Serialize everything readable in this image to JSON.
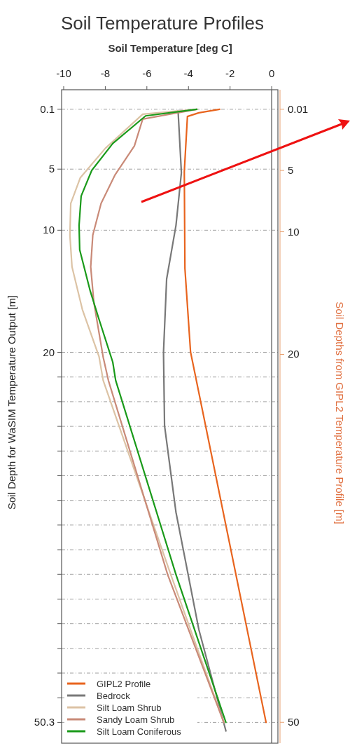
{
  "chart_data": {
    "type": "line",
    "title": "Soil Temperature Profiles",
    "xlabel": "Soil Temperature [deg C]",
    "ylabel": "Soil Depth for WaSIM Temperature Output [m]",
    "y2label": "Soil Depths from GIPL2 Temperature Profile [m]",
    "xlim": [
      -10.1,
      0.3
    ],
    "xticks": [
      -10,
      -8,
      -6,
      -4,
      -2,
      0
    ],
    "ylim": [
      52,
      -1.5
    ],
    "yticks": [
      0.1,
      5,
      10,
      20,
      {
        "value": 22.02,
        "label": null
      },
      {
        "value": 24.04,
        "label": null
      },
      {
        "value": 26.06,
        "label": null
      },
      {
        "value": 28.08,
        "label": null
      },
      {
        "value": 30.1,
        "label": null
      },
      {
        "value": 32.12,
        "label": null
      },
      {
        "value": 34.14,
        "label": null
      },
      {
        "value": 36.16,
        "label": null
      },
      {
        "value": 38.18,
        "label": null
      },
      {
        "value": 40.2,
        "label": null
      },
      {
        "value": 42.22,
        "label": null
      },
      {
        "value": 44.24,
        "label": null
      },
      {
        "value": 46.26,
        "label": null
      },
      {
        "value": 48.28,
        "label": null
      },
      50.3
    ],
    "y2lim": [
      51.7,
      -1.58
    ],
    "y2ticks": [
      0.01,
      5,
      10,
      20,
      50
    ],
    "grid": "y",
    "legend": "bottom left",
    "line_style": "solid",
    "marker": "none",
    "ref_lines": [
      {
        "axis": "x",
        "value": 0,
        "color": "#707070"
      }
    ],
    "series": [
      {
        "name": "GIPL2 Profile",
        "color": "#e8641e",
        "axis": "y2",
        "x": [
          -2.5,
          -3.5,
          -4.05,
          -4.2,
          -4.17,
          -3.9,
          -0.27
        ],
        "values": [
          0.01,
          0.3,
          0.6,
          5.1,
          13,
          19.8,
          50
        ]
      },
      {
        "name": "Bedrock",
        "color": "#787878",
        "x": [
          -4.5,
          -4.34,
          -4.6,
          -5.05,
          -5.2,
          -5.15,
          -4.6,
          -3.5,
          -2.2
        ],
        "values": [
          0.2,
          5.3,
          9.6,
          14,
          20,
          26,
          33.1,
          42.7,
          51
        ]
      },
      {
        "name": "Silt Loam Shrub",
        "color": "#dcc3a5",
        "x": [
          -3.6,
          -6.2,
          -8,
          -9.2,
          -9.66,
          -9.7,
          -9.6,
          -9.1,
          -8.3,
          -8.1,
          -4.85,
          -2.3
        ],
        "values": [
          0.1,
          0.5,
          3.3,
          5.7,
          7.8,
          10.4,
          13,
          16.5,
          20.35,
          22.3,
          38.2,
          50.3
        ]
      },
      {
        "name": "Sandy Loam Shrub",
        "color": "#c98a78",
        "x": [
          -3.6,
          -6.2,
          -6.6,
          -7.54,
          -8.2,
          -8.6,
          -8.7,
          -8.55,
          -8.1,
          -7.85,
          -5,
          -2.3
        ],
        "values": [
          0.1,
          0.9,
          3.1,
          5.5,
          7.8,
          10.4,
          13,
          15.9,
          20.4,
          22.3,
          38.2,
          50.3
        ]
      },
      {
        "name": "Silt Loam Coniferous",
        "color": "#1a9a1a",
        "x": [
          -3.6,
          -6.06,
          -7.64,
          -8.65,
          -9.16,
          -9.26,
          -9.23,
          -8.72,
          -8.3,
          -7.64,
          -7.5,
          -4.6,
          -2.2
        ],
        "values": [
          0.1,
          0.64,
          2.9,
          5.1,
          7.2,
          9.6,
          11.6,
          15,
          17.3,
          20.8,
          22.3,
          38.2,
          50.3
        ]
      }
    ]
  }
}
